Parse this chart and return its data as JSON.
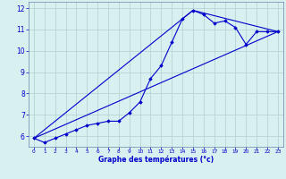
{
  "xlabel": "Graphe des températures (°c)",
  "ylabel": "",
  "bg_color": "#d8f0f0",
  "grid_color": "#b0d0d0",
  "line_color": "#0000cc",
  "spine_color": "#6688aa",
  "xlim": [
    -0.5,
    23.5
  ],
  "ylim": [
    5.5,
    12.3
  ],
  "xticks": [
    0,
    1,
    2,
    3,
    4,
    5,
    6,
    7,
    8,
    9,
    10,
    11,
    12,
    13,
    14,
    15,
    16,
    17,
    18,
    19,
    20,
    21,
    22,
    23
  ],
  "yticks": [
    6,
    7,
    8,
    9,
    10,
    11,
    12
  ],
  "line1_x": [
    0,
    1,
    2,
    3,
    4,
    5,
    6,
    7,
    8,
    9,
    10,
    11,
    12,
    13,
    14,
    15,
    16,
    17,
    18,
    19,
    20,
    21,
    22,
    23
  ],
  "line1_y": [
    5.9,
    5.7,
    5.9,
    6.1,
    6.3,
    6.5,
    6.6,
    6.7,
    6.7,
    7.1,
    7.6,
    8.7,
    9.3,
    10.4,
    11.5,
    11.9,
    11.7,
    11.3,
    11.4,
    11.1,
    10.3,
    10.9,
    10.9,
    10.9
  ],
  "line2_x": [
    0,
    23
  ],
  "line2_y": [
    5.9,
    10.9
  ],
  "line3_x": [
    0,
    15,
    23
  ],
  "line3_y": [
    5.9,
    11.9,
    10.9
  ]
}
